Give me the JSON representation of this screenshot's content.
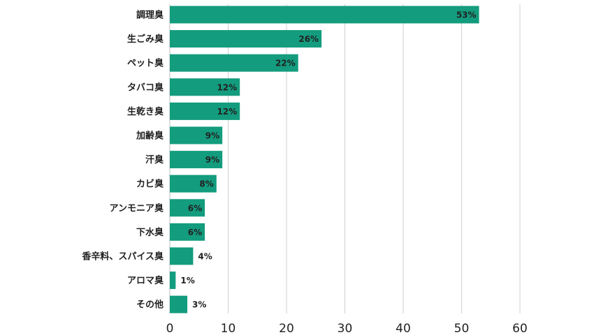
{
  "chart_data": {
    "type": "bar",
    "orientation": "horizontal",
    "categories": [
      "調理臭",
      "生ごみ臭",
      "ペット臭",
      "タバコ臭",
      "生乾き臭",
      "加齢臭",
      "汗臭",
      "カビ臭",
      "アンモニア臭",
      "下水臭",
      "香辛料、スパイス臭",
      "アロマ臭",
      "その他"
    ],
    "values": [
      53,
      26,
      22,
      12,
      12,
      9,
      9,
      8,
      6,
      6,
      4,
      1,
      3
    ],
    "value_labels": [
      "53%",
      "26%",
      "22%",
      "12%",
      "12%",
      "9%",
      "9%",
      "8%",
      "6%",
      "6%",
      "4%",
      "1%",
      "3%"
    ],
    "xlim": [
      0,
      60
    ],
    "xticks": [
      0,
      10,
      20,
      30,
      40,
      50,
      60
    ],
    "grid": true,
    "bar_color": "#139c7e",
    "grid_color": "#d0d0d0",
    "title": "",
    "xlabel": "",
    "ylabel": ""
  }
}
